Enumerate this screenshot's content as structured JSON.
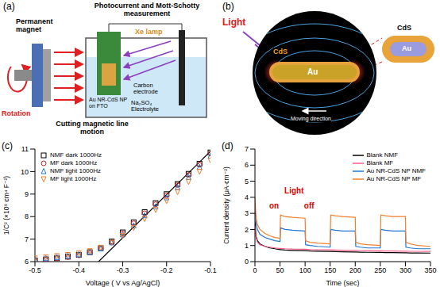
{
  "panel_a": {
    "label": "(a)",
    "title": "Photocurrent and Mott-Schotty measurement",
    "magnet": "Permanent magnet",
    "rotation": "Rotation",
    "motion": "Cutting magnetic line motion",
    "lamp": "Xe lamp",
    "working_electrode": "Au NR-CdS NP on FTO",
    "counter_electrode": "Carbon electrode",
    "electrolyte": "Na₂SO₄ Electrolyte"
  },
  "panel_b": {
    "label": "(b)",
    "light": "Light",
    "shell": "CdS",
    "core": "Au",
    "inset_shell": "CdS",
    "inset_core": "Au",
    "motion": "Moving direction"
  },
  "chart_data": [
    {
      "panel": "(c)",
      "type": "scatter",
      "x_label": "Voltage ( V vs Ag/AgCl)",
      "y_label": "1/C² (×10⁹ cm⁴ F⁻²)",
      "xlim": [
        -0.5,
        -0.1
      ],
      "xticks": [
        -0.5,
        -0.4,
        -0.3,
        -0.2,
        -0.1
      ],
      "ylim": [
        6,
        11
      ],
      "yticks": [
        6,
        7,
        8,
        9,
        10,
        11
      ],
      "grid": false,
      "legend": "upper left",
      "x": [
        -0.5,
        -0.475,
        -0.45,
        -0.425,
        -0.4,
        -0.375,
        -0.35,
        -0.325,
        -0.3,
        -0.275,
        -0.25,
        -0.225,
        -0.2,
        -0.175,
        -0.15,
        -0.125,
        -0.1
      ],
      "series": [
        {
          "name": "NMF dark 1000Hz",
          "color": "#000000",
          "marker": "square",
          "values": [
            6.05,
            6.1,
            6.15,
            6.22,
            6.3,
            6.42,
            6.6,
            6.9,
            7.3,
            7.75,
            8.2,
            8.6,
            9.0,
            9.45,
            9.9,
            10.35,
            10.85
          ]
        },
        {
          "name": "MF dark 1000Hz",
          "color": "#d62728",
          "marker": "circle",
          "values": [
            6.05,
            6.1,
            6.15,
            6.2,
            6.28,
            6.4,
            6.58,
            6.85,
            7.25,
            7.7,
            8.15,
            8.55,
            8.95,
            9.4,
            9.85,
            10.3,
            10.8
          ]
        },
        {
          "name": "NMF light 1000Hz",
          "color": "#1f77d4",
          "marker": "triangle-up",
          "values": [
            6.1,
            6.15,
            6.2,
            6.25,
            6.32,
            6.42,
            6.58,
            6.85,
            7.2,
            7.6,
            8.05,
            8.45,
            8.85,
            9.3,
            9.75,
            10.2,
            10.7
          ]
        },
        {
          "name": "MF light 1000Hz",
          "color": "#f07f2e",
          "marker": "triangle-down",
          "values": [
            6.15,
            6.2,
            6.25,
            6.3,
            6.37,
            6.47,
            6.62,
            6.85,
            7.15,
            7.5,
            7.9,
            8.3,
            8.7,
            9.1,
            9.55,
            10.0,
            10.5
          ]
        }
      ],
      "fit_line": {
        "x": [
          -0.355,
          -0.1
        ],
        "values": [
          6,
          10.9
        ],
        "color": "#000000",
        "line_style": "solid"
      }
    },
    {
      "panel": "(d)",
      "type": "line",
      "x_label": "Time (sec)",
      "y_label": "Current density (μA·cm⁻²)",
      "xlim": [
        0,
        350
      ],
      "xticks": [
        0,
        50,
        100,
        150,
        200,
        250,
        300,
        350
      ],
      "ylim": [
        0,
        7
      ],
      "yticks": [
        0,
        1,
        2,
        3,
        4,
        5,
        6,
        7
      ],
      "grid": false,
      "legend": "upper right",
      "x": [
        0,
        2,
        5,
        10,
        20,
        30,
        40,
        50,
        51,
        60,
        75,
        99,
        100,
        101,
        110,
        125,
        149,
        150,
        151,
        160,
        175,
        199,
        200,
        201,
        210,
        225,
        249,
        250,
        251,
        260,
        275,
        299,
        300,
        301,
        310,
        325,
        350
      ],
      "series": [
        {
          "name": "Blank NMF",
          "color": "#000000",
          "values": [
            2.5,
            1.6,
            1.3,
            1.1,
            0.95,
            0.85,
            0.8,
            0.75,
            0.75,
            0.72,
            0.7,
            0.68,
            0.68,
            0.68,
            0.66,
            0.65,
            0.63,
            0.63,
            0.63,
            0.62,
            0.61,
            0.6,
            0.6,
            0.6,
            0.59,
            0.58,
            0.57,
            0.57,
            0.57,
            0.56,
            0.56,
            0.55,
            0.55,
            0.55,
            0.54,
            0.54,
            0.53
          ]
        },
        {
          "name": "Blank MF",
          "color": "#ff5c8a",
          "values": [
            2.2,
            1.5,
            1.2,
            1.05,
            0.95,
            0.9,
            0.85,
            0.82,
            0.82,
            0.8,
            0.78,
            0.77,
            0.77,
            0.77,
            0.75,
            0.74,
            0.73,
            0.73,
            0.73,
            0.72,
            0.71,
            0.7,
            0.7,
            0.7,
            0.69,
            0.68,
            0.67,
            0.67,
            0.67,
            0.66,
            0.66,
            0.65,
            0.65,
            0.65,
            0.64,
            0.64,
            0.63
          ]
        },
        {
          "name": "Au NR-CdS NP NMF",
          "color": "#1f77d4",
          "values": [
            3.5,
            2.4,
            2.0,
            1.7,
            1.5,
            1.4,
            1.3,
            1.25,
            2.1,
            2.0,
            1.95,
            1.9,
            1.9,
            1.05,
            1.0,
            0.95,
            0.9,
            0.9,
            2.0,
            1.95,
            1.9,
            1.9,
            1.9,
            0.95,
            0.9,
            0.85,
            0.85,
            0.85,
            2.0,
            1.95,
            1.9,
            1.9,
            1.9,
            0.9,
            0.85,
            0.8,
            0.8
          ]
        },
        {
          "name": "Au NR-CdS NP MF",
          "color": "#f07f2e",
          "values": [
            4.0,
            2.8,
            2.3,
            2.0,
            1.75,
            1.6,
            1.5,
            1.45,
            2.9,
            2.8,
            2.75,
            2.7,
            2.7,
            1.3,
            1.2,
            1.15,
            1.1,
            1.1,
            2.9,
            2.85,
            2.8,
            2.75,
            2.75,
            1.2,
            1.1,
            1.05,
            1.0,
            1.0,
            2.9,
            2.85,
            2.8,
            2.8,
            2.8,
            1.2,
            1.1,
            1.0,
            0.95
          ]
        }
      ],
      "annotations": [
        {
          "text": "on",
          "x": 38,
          "y": 3.5,
          "color": "#e00000"
        },
        {
          "text": "off",
          "x": 108,
          "y": 3.5,
          "color": "#e00000"
        },
        {
          "text": "Light",
          "x": 78,
          "y": 4.4,
          "color": "#e00000"
        }
      ]
    }
  ]
}
